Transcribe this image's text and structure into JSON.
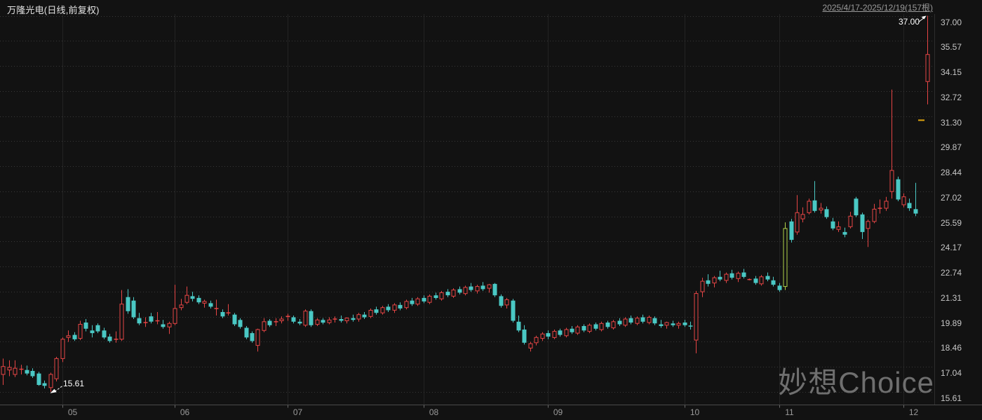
{
  "header": {
    "title": "万隆光电(日线,前复权)",
    "date_range": "2025/4/17-2025/12/19(157根)"
  },
  "watermark": "妙想Choice",
  "y_axis": {
    "labels": [
      "37.00",
      "35.57",
      "34.15",
      "32.72",
      "31.30",
      "29.87",
      "28.44",
      "27.02",
      "25.59",
      "24.17",
      "22.74",
      "21.31",
      "19.89",
      "18.46",
      "17.04",
      "15.61"
    ]
  },
  "x_axis": {
    "months": [
      {
        "label": "05",
        "bar_index": 10
      },
      {
        "label": "06",
        "bar_index": 29
      },
      {
        "label": "07",
        "bar_index": 48
      },
      {
        "label": "08",
        "bar_index": 71
      },
      {
        "label": "09",
        "bar_index": 92
      },
      {
        "label": "10",
        "bar_index": 115
      },
      {
        "label": "11",
        "bar_index": 131
      },
      {
        "label": "12",
        "bar_index": 152
      }
    ]
  },
  "annotations": {
    "low": {
      "label": "15.61",
      "bar_index": 8,
      "price": 15.61
    },
    "high": {
      "label": "37.00",
      "bar_index": 156,
      "price": 37.0
    }
  },
  "colors": {
    "background": "#121212",
    "up": "#e64545",
    "down": "#4ac8c4",
    "limit_up_candle": "#b0d24b",
    "one_word_dash": "#e0a50f",
    "grid": "#383838",
    "month_line": "#232323",
    "axis_line": "#4a4a4a",
    "axis_tick": "#6a6a6a",
    "plot_border": "#2d2d2d",
    "y_label": "#c6c6c6",
    "x_label": "#9a9a9a",
    "title": "#e4e4e4",
    "annotation": "#ffffff",
    "watermark": "#6f6f6f"
  },
  "chart_data": {
    "type": "candlestick",
    "symbol": "万隆光电",
    "period": "日线",
    "adjust": "前复权",
    "bar_count": 157,
    "title": "万隆光电(日线,前复权)",
    "date_range": "2025/4/17-2025/12/19",
    "ylim": [
      15.61,
      37.0
    ],
    "y_ticks": [
      37.0,
      35.57,
      34.15,
      32.72,
      31.3,
      29.87,
      28.44,
      27.02,
      25.59,
      24.17,
      22.74,
      21.31,
      19.89,
      18.46,
      17.04,
      15.61
    ],
    "grid": "dotted-horizontal",
    "legend": "none",
    "period_low": 15.61,
    "period_high": 37.0,
    "color_overrides": {
      "132": "limit_up_candle",
      "155": "one_word_dash"
    },
    "ohlc": [
      [
        16.6,
        17.5,
        16.0,
        17.05
      ],
      [
        16.85,
        17.4,
        16.5,
        17.0
      ],
      [
        16.6,
        17.4,
        16.45,
        16.95
      ],
      [
        16.9,
        17.15,
        16.6,
        16.9
      ],
      [
        16.85,
        17.1,
        16.55,
        16.65
      ],
      [
        16.8,
        16.95,
        16.4,
        16.5
      ],
      [
        16.65,
        16.75,
        15.95,
        16.0
      ],
      [
        16.1,
        16.25,
        15.8,
        15.95
      ],
      [
        15.85,
        16.7,
        15.61,
        16.6
      ],
      [
        16.35,
        17.6,
        16.2,
        17.5
      ],
      [
        17.5,
        18.7,
        17.3,
        18.6
      ],
      [
        18.7,
        19.1,
        18.45,
        18.8
      ],
      [
        18.85,
        19.0,
        18.5,
        18.6
      ],
      [
        18.65,
        19.65,
        18.55,
        19.45
      ],
      [
        19.55,
        19.75,
        19.05,
        19.2
      ],
      [
        19.1,
        19.4,
        18.7,
        18.95
      ],
      [
        19.4,
        19.5,
        18.95,
        19.05
      ],
      [
        19.1,
        19.25,
        18.6,
        18.7
      ],
      [
        18.75,
        18.9,
        18.4,
        18.5
      ],
      [
        18.55,
        19.05,
        18.4,
        18.6
      ],
      [
        18.6,
        21.4,
        18.5,
        20.6
      ],
      [
        21.0,
        21.45,
        20.05,
        20.2
      ],
      [
        20.8,
        21.0,
        19.75,
        19.85
      ],
      [
        19.8,
        20.1,
        19.4,
        19.5
      ],
      [
        19.5,
        19.85,
        19.3,
        19.55
      ],
      [
        19.9,
        20.1,
        19.5,
        19.6
      ],
      [
        19.6,
        20.15,
        19.45,
        19.65
      ],
      [
        19.45,
        19.7,
        19.2,
        19.3
      ],
      [
        19.3,
        19.6,
        18.9,
        19.5
      ],
      [
        19.5,
        21.7,
        19.4,
        20.35
      ],
      [
        20.4,
        20.9,
        20.25,
        20.55
      ],
      [
        20.7,
        21.6,
        20.6,
        21.1
      ],
      [
        21.05,
        21.3,
        20.75,
        20.9
      ],
      [
        20.95,
        21.1,
        20.6,
        20.7
      ],
      [
        20.65,
        20.85,
        20.4,
        20.75
      ],
      [
        20.65,
        20.8,
        20.35,
        20.45
      ],
      [
        20.3,
        20.85,
        19.95,
        20.35
      ],
      [
        20.15,
        20.3,
        19.8,
        19.9
      ],
      [
        20.05,
        20.6,
        19.95,
        20.1
      ],
      [
        20.0,
        20.1,
        19.35,
        19.45
      ],
      [
        19.7,
        19.8,
        19.2,
        19.3
      ],
      [
        19.25,
        19.35,
        18.6,
        18.7
      ],
      [
        18.95,
        19.05,
        18.4,
        18.5
      ],
      [
        18.25,
        19.2,
        17.9,
        19.15
      ],
      [
        19.1,
        19.8,
        19.0,
        19.6
      ],
      [
        19.65,
        19.75,
        19.3,
        19.4
      ],
      [
        19.55,
        19.8,
        19.35,
        19.6
      ],
      [
        19.65,
        19.9,
        19.5,
        19.75
      ],
      [
        19.85,
        20.05,
        19.65,
        19.9
      ],
      [
        19.85,
        19.95,
        19.5,
        19.6
      ],
      [
        19.6,
        19.75,
        19.4,
        19.5
      ],
      [
        19.4,
        20.3,
        19.3,
        20.2
      ],
      [
        20.2,
        20.3,
        19.3,
        19.4
      ],
      [
        19.45,
        19.8,
        19.35,
        19.7
      ],
      [
        19.7,
        19.8,
        19.45,
        19.55
      ],
      [
        19.55,
        19.85,
        19.45,
        19.7
      ],
      [
        19.7,
        19.9,
        19.55,
        19.75
      ],
      [
        19.75,
        19.95,
        19.55,
        19.65
      ],
      [
        19.65,
        19.85,
        19.5,
        19.8
      ],
      [
        19.8,
        20.0,
        19.6,
        19.7
      ],
      [
        19.75,
        20.1,
        19.6,
        20.0
      ],
      [
        20.0,
        20.15,
        19.75,
        19.85
      ],
      [
        19.9,
        20.35,
        19.8,
        20.25
      ],
      [
        20.3,
        20.45,
        20.0,
        20.1
      ],
      [
        20.1,
        20.5,
        20.0,
        20.4
      ],
      [
        20.45,
        20.6,
        20.15,
        20.25
      ],
      [
        20.25,
        20.65,
        20.1,
        20.55
      ],
      [
        20.55,
        20.7,
        20.25,
        20.35
      ],
      [
        20.4,
        20.85,
        20.3,
        20.75
      ],
      [
        20.8,
        20.95,
        20.5,
        20.6
      ],
      [
        20.6,
        21.0,
        20.5,
        20.9
      ],
      [
        20.95,
        21.1,
        20.65,
        20.75
      ],
      [
        20.7,
        21.15,
        20.6,
        21.05
      ],
      [
        21.1,
        21.25,
        20.85,
        20.95
      ],
      [
        20.9,
        21.35,
        20.8,
        21.25
      ],
      [
        21.3,
        21.45,
        21.0,
        21.1
      ],
      [
        21.05,
        21.5,
        20.95,
        21.4
      ],
      [
        21.45,
        21.6,
        21.15,
        21.25
      ],
      [
        21.2,
        21.65,
        21.1,
        21.55
      ],
      [
        21.6,
        21.8,
        21.3,
        21.4
      ],
      [
        21.35,
        21.7,
        21.2,
        21.6
      ],
      [
        21.65,
        21.85,
        21.35,
        21.45
      ],
      [
        21.5,
        21.75,
        21.25,
        21.7
      ],
      [
        21.75,
        21.8,
        21.0,
        21.1
      ],
      [
        21.05,
        21.15,
        20.4,
        20.5
      ],
      [
        20.55,
        20.95,
        20.35,
        20.85
      ],
      [
        20.8,
        20.9,
        19.55,
        19.65
      ],
      [
        19.6,
        19.95,
        19.0,
        19.1
      ],
      [
        19.15,
        19.4,
        18.3,
        18.4
      ],
      [
        18.1,
        18.45,
        17.9,
        18.35
      ],
      [
        18.4,
        18.8,
        18.25,
        18.7
      ],
      [
        18.65,
        19.0,
        18.5,
        18.9
      ],
      [
        18.95,
        19.1,
        18.6,
        18.75
      ],
      [
        18.7,
        19.15,
        18.6,
        19.05
      ],
      [
        19.1,
        19.2,
        18.75,
        18.85
      ],
      [
        18.8,
        19.25,
        18.7,
        19.15
      ],
      [
        19.2,
        19.35,
        18.9,
        19.0
      ],
      [
        18.95,
        19.4,
        18.85,
        19.3
      ],
      [
        19.35,
        19.45,
        19.0,
        19.1
      ],
      [
        19.05,
        19.5,
        18.95,
        19.4
      ],
      [
        19.45,
        19.55,
        19.1,
        19.2
      ],
      [
        19.15,
        19.6,
        19.05,
        19.5
      ],
      [
        19.55,
        19.65,
        19.2,
        19.3
      ],
      [
        19.25,
        19.7,
        19.15,
        19.6
      ],
      [
        19.65,
        19.8,
        19.35,
        19.45
      ],
      [
        19.4,
        19.85,
        19.3,
        19.75
      ],
      [
        19.8,
        19.95,
        19.45,
        19.55
      ],
      [
        19.5,
        19.9,
        19.4,
        19.8
      ],
      [
        19.85,
        20.0,
        19.5,
        19.6
      ],
      [
        19.55,
        19.95,
        19.45,
        19.85
      ],
      [
        19.8,
        19.9,
        19.4,
        19.5
      ],
      [
        19.45,
        19.7,
        19.25,
        19.35
      ],
      [
        19.4,
        19.6,
        19.2,
        19.55
      ],
      [
        19.5,
        19.65,
        19.3,
        19.4
      ],
      [
        19.4,
        19.6,
        19.2,
        19.5
      ],
      [
        19.55,
        19.7,
        19.3,
        19.4
      ],
      [
        19.35,
        19.6,
        19.15,
        19.3
      ],
      [
        18.55,
        21.35,
        17.8,
        21.2
      ],
      [
        21.3,
        22.1,
        21.0,
        21.9
      ],
      [
        21.95,
        22.3,
        21.6,
        21.75
      ],
      [
        21.8,
        22.2,
        21.55,
        22.1
      ],
      [
        22.15,
        22.5,
        21.9,
        22.0
      ],
      [
        21.95,
        22.4,
        21.8,
        22.3
      ],
      [
        22.35,
        22.55,
        22.0,
        22.1
      ],
      [
        22.05,
        22.45,
        21.85,
        22.35
      ],
      [
        22.4,
        22.6,
        22.05,
        22.15
      ],
      [
        22.0,
        22.05,
        21.95,
        22.0
      ],
      [
        22.05,
        22.2,
        21.7,
        21.8
      ],
      [
        21.75,
        22.25,
        21.65,
        22.15
      ],
      [
        22.2,
        22.4,
        21.9,
        22.0
      ],
      [
        21.95,
        22.15,
        21.6,
        21.7
      ],
      [
        21.65,
        21.8,
        21.3,
        21.4
      ],
      [
        21.6,
        25.25,
        21.4,
        24.9
      ],
      [
        25.3,
        25.45,
        24.1,
        24.25
      ],
      [
        24.7,
        26.8,
        24.55,
        25.8
      ],
      [
        25.45,
        26.1,
        25.25,
        25.7
      ],
      [
        25.8,
        26.6,
        25.7,
        26.45
      ],
      [
        26.5,
        27.6,
        25.8,
        25.9
      ],
      [
        25.95,
        26.35,
        25.75,
        26.05
      ],
      [
        26.0,
        26.15,
        25.45,
        25.55
      ],
      [
        25.3,
        25.5,
        24.8,
        24.9
      ],
      [
        24.85,
        25.3,
        24.7,
        25.0
      ],
      [
        24.7,
        24.95,
        24.4,
        24.55
      ],
      [
        25.0,
        25.85,
        24.9,
        25.6
      ],
      [
        26.6,
        26.7,
        25.55,
        25.65
      ],
      [
        25.7,
        25.8,
        24.3,
        24.7
      ],
      [
        24.9,
        25.4,
        23.85,
        25.3
      ],
      [
        25.3,
        26.3,
        25.2,
        26.0
      ],
      [
        26.0,
        26.55,
        25.75,
        26.05
      ],
      [
        26.05,
        26.7,
        25.9,
        26.45
      ],
      [
        27.0,
        32.8,
        26.6,
        28.2
      ],
      [
        27.7,
        27.85,
        26.45,
        26.55
      ],
      [
        26.25,
        26.9,
        26.1,
        26.7
      ],
      [
        26.35,
        26.6,
        25.9,
        26.05
      ],
      [
        26.0,
        27.5,
        25.6,
        25.75
      ],
      [
        31.06,
        31.06,
        31.06,
        31.06
      ],
      [
        33.26,
        37.0,
        31.96,
        34.8
      ]
    ]
  }
}
